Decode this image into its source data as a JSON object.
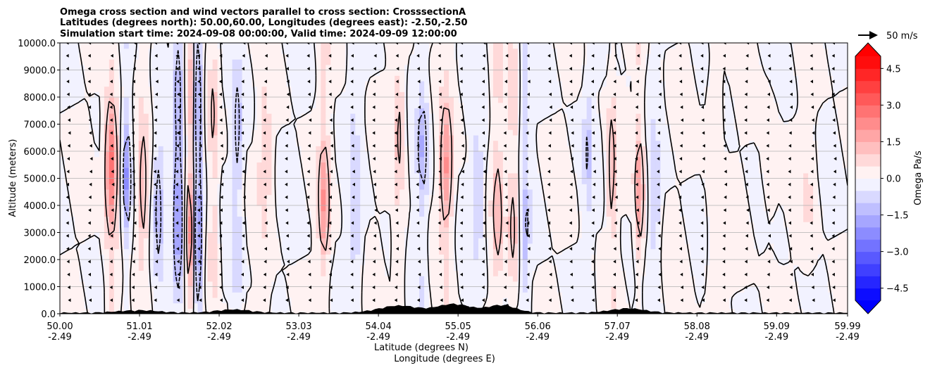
{
  "chart_data": {
    "type": "heatmap",
    "title_lines": [
      "Omega cross section and wind vectors parallel to cross section: CrosssectionA",
      "Latitudes (degrees north): 50.00,60.00, Longitudes (degrees east): -2.50,-2.50",
      "Simulation start time: 2024-09-08 00:00:00, Valid time: 2024-09-09 12:00:00"
    ],
    "xlabel_line1": "Latitude (degrees N)",
    "xlabel_line2": "Longitude (degrees E)",
    "ylabel": "Altitude (meters)",
    "x_range": [
      50.0,
      59.99
    ],
    "y_range": [
      0,
      10000
    ],
    "x_ticks": [
      {
        "value": 50.0,
        "lat": "50.00",
        "lon": "-2.49"
      },
      {
        "value": 51.01,
        "lat": "51.01",
        "lon": "-2.49"
      },
      {
        "value": 52.02,
        "lat": "52.02",
        "lon": "-2.49"
      },
      {
        "value": 53.03,
        "lat": "53.03",
        "lon": "-2.49"
      },
      {
        "value": 54.04,
        "lat": "54.04",
        "lon": "-2.49"
      },
      {
        "value": 55.05,
        "lat": "55.05",
        "lon": "-2.49"
      },
      {
        "value": 56.06,
        "lat": "56.06",
        "lon": "-2.49"
      },
      {
        "value": 57.07,
        "lat": "57.07",
        "lon": "-2.49"
      },
      {
        "value": 58.08,
        "lat": "58.08",
        "lon": "-2.49"
      },
      {
        "value": 59.09,
        "lat": "59.09",
        "lon": "-2.49"
      },
      {
        "value": 59.99,
        "lat": "59.99",
        "lon": "-2.49"
      }
    ],
    "y_ticks": [
      {
        "value": 0,
        "label": "0.0"
      },
      {
        "value": 1000,
        "label": "1000.0"
      },
      {
        "value": 2000,
        "label": "2000.0"
      },
      {
        "value": 3000,
        "label": "3000.0"
      },
      {
        "value": 4000,
        "label": "4000.0"
      },
      {
        "value": 5000,
        "label": "5000.0"
      },
      {
        "value": 6000,
        "label": "6000.0"
      },
      {
        "value": 7000,
        "label": "7000.0"
      },
      {
        "value": 8000,
        "label": "8000.0"
      },
      {
        "value": 9000,
        "label": "9000.0"
      },
      {
        "value": 10000,
        "label": "10000.0"
      }
    ],
    "grid": "horizontal",
    "colorbar": {
      "label": "Omega Pa/s",
      "range": [
        -5.0,
        5.0
      ],
      "step": 0.5,
      "ticks": [
        {
          "value": 4.5,
          "label": "4.5"
        },
        {
          "value": 3.0,
          "label": "3.0"
        },
        {
          "value": 1.5,
          "label": "1.5"
        },
        {
          "value": 0.0,
          "label": "0.0"
        },
        {
          "value": -1.5,
          "label": "−1.5"
        },
        {
          "value": -3.0,
          "label": "−3.0"
        },
        {
          "value": -4.5,
          "label": "−4.5"
        }
      ],
      "extend": "both",
      "cmap": "bwr"
    },
    "vector_key": {
      "label": "50 m/s"
    },
    "omega_features": [
      {
        "lat": 50.65,
        "width": 0.08,
        "value": 3.0
      },
      {
        "lat": 50.85,
        "width": 0.05,
        "value": -2.0
      },
      {
        "lat": 51.05,
        "width": 0.06,
        "value": 1.5
      },
      {
        "lat": 51.25,
        "width": 0.06,
        "value": -1.5
      },
      {
        "lat": 51.5,
        "width": 0.06,
        "value": -3.0
      },
      {
        "lat": 51.65,
        "width": 0.05,
        "value": 2.5
      },
      {
        "lat": 51.75,
        "width": 0.05,
        "value": -4.0
      },
      {
        "lat": 51.95,
        "width": 0.06,
        "value": 1.5
      },
      {
        "lat": 52.25,
        "width": 0.06,
        "value": -1.5
      },
      {
        "lat": 52.6,
        "width": 0.08,
        "value": 1.0
      },
      {
        "lat": 53.35,
        "width": 0.07,
        "value": 2.0
      },
      {
        "lat": 53.75,
        "width": 0.08,
        "value": -1.0
      },
      {
        "lat": 54.3,
        "width": 0.07,
        "value": 1.5
      },
      {
        "lat": 54.6,
        "width": 0.07,
        "value": -1.5
      },
      {
        "lat": 54.9,
        "width": 0.08,
        "value": 2.0
      },
      {
        "lat": 55.3,
        "width": 0.07,
        "value": -1.0
      },
      {
        "lat": 55.55,
        "width": 0.07,
        "value": 1.5
      },
      {
        "lat": 55.75,
        "width": 0.07,
        "value": 1.5
      },
      {
        "lat": 55.9,
        "width": 0.06,
        "value": -1.5
      },
      {
        "lat": 56.7,
        "width": 0.06,
        "value": -1.0
      },
      {
        "lat": 57.0,
        "width": 0.05,
        "value": 1.5
      },
      {
        "lat": 57.35,
        "width": 0.06,
        "value": 2.0
      },
      {
        "lat": 57.55,
        "width": 0.06,
        "value": -1.0
      },
      {
        "lat": 58.3,
        "width": 0.1,
        "value": 0.8
      },
      {
        "lat": 59.0,
        "width": 0.1,
        "value": 0.5
      },
      {
        "lat": 59.5,
        "width": 0.1,
        "value": 0.5
      }
    ],
    "contour_levels": [
      -1.0,
      0.0,
      1.0
    ]
  }
}
